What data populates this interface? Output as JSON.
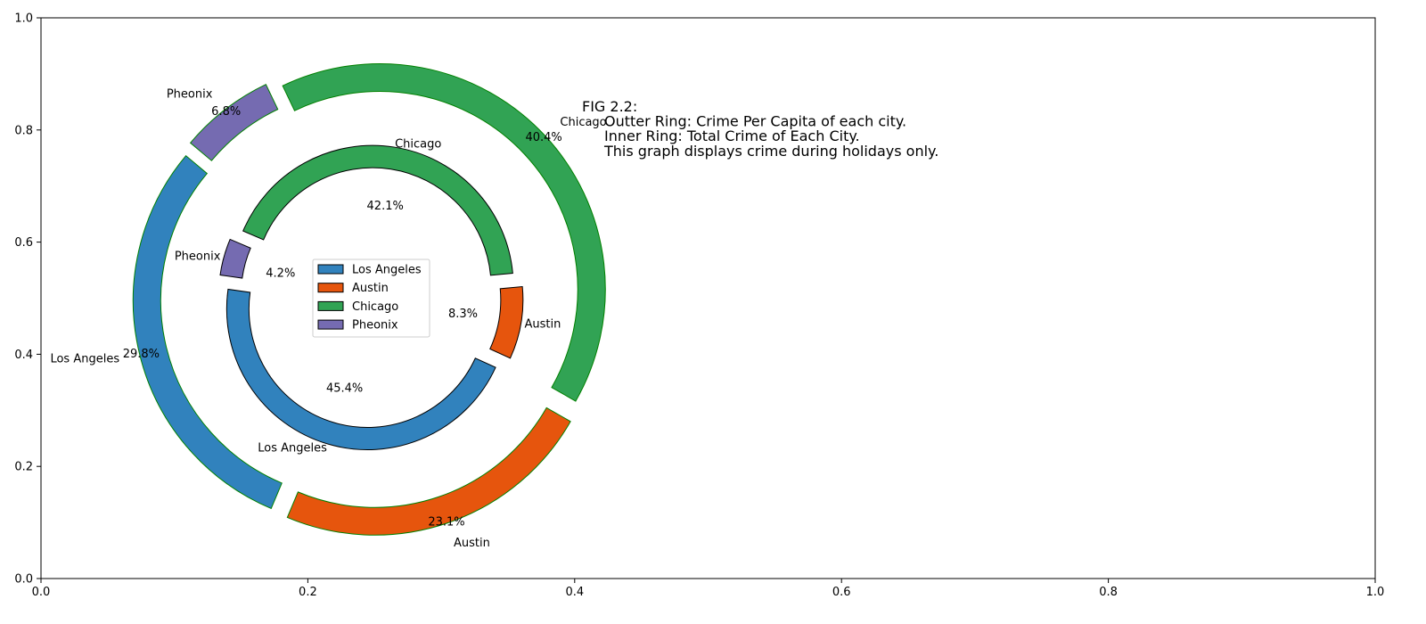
{
  "chart_data": {
    "type": "pie",
    "variant": "nested-donut",
    "xlim": [
      0,
      1
    ],
    "ylim": [
      0,
      1
    ],
    "x_ticks": [
      "0.0",
      "0.2",
      "0.4",
      "0.6",
      "0.8",
      "1.0"
    ],
    "y_ticks": [
      "0.0",
      "0.2",
      "0.4",
      "0.6",
      "0.8",
      "1.0"
    ],
    "grid": false,
    "legend": {
      "placement": "center",
      "entries": [
        "Los Angeles",
        "Austin",
        "Chicago",
        "Pheonix"
      ]
    },
    "annotation": {
      "lines": [
        "FIG 2.2:",
        "Outter Ring: Crime Per Capita of each city.",
        "Inner Ring: Total Crime of Each City.",
        "This graph displays crime during holidays only."
      ]
    },
    "colors": {
      "Los Angeles": "#3182bd",
      "Austin": "#e6550d",
      "Chicago": "#31a354",
      "Pheonix": "#756bb1",
      "outer_edge": "#008000",
      "inner_edge": "#000000"
    },
    "rings": [
      {
        "name": "outer",
        "slices": [
          {
            "label": "Los Angeles",
            "value": 29.8,
            "pct_label": "29.8%"
          },
          {
            "label": "Austin",
            "value": 23.1,
            "pct_label": "23.1%"
          },
          {
            "label": "Chicago",
            "value": 40.4,
            "pct_label": "40.4%"
          },
          {
            "label": "Pheonix",
            "value": 6.8,
            "pct_label": "6.8%"
          }
        ]
      },
      {
        "name": "inner",
        "slices": [
          {
            "label": "Los Angeles",
            "value": 45.4,
            "pct_label": "45.4%"
          },
          {
            "label": "Austin",
            "value": 8.3,
            "pct_label": "8.3%"
          },
          {
            "label": "Chicago",
            "value": 42.1,
            "pct_label": "42.1%"
          },
          {
            "label": "Pheonix",
            "value": 4.2,
            "pct_label": "4.2%"
          }
        ]
      }
    ]
  }
}
